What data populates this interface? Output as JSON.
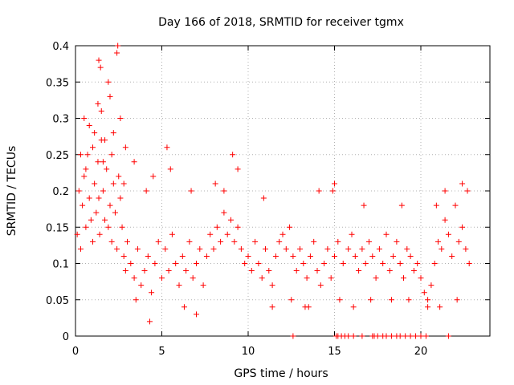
{
  "chart_data": {
    "type": "scatter",
    "title": "Day 166 of 2018, SRMTID for receiver tgmx",
    "xlabel": "GPS time / hours",
    "ylabel": "SRMTID / TECUs",
    "xlim": [
      0,
      24
    ],
    "ylim": [
      0,
      0.4
    ],
    "xticks": [
      0,
      5,
      10,
      15,
      20
    ],
    "xtick_labels": [
      "0",
      "5",
      "10",
      "15",
      "20"
    ],
    "yticks": [
      0,
      0.05,
      0.1,
      0.15,
      0.2,
      0.25,
      0.3,
      0.35,
      0.4
    ],
    "ytick_labels": [
      "0",
      "0.05",
      "0.1",
      "0.15",
      "0.2",
      "0.25",
      "0.3",
      "0.35",
      "0.4"
    ],
    "grid": true,
    "marker": "plus",
    "color": "#ff0000",
    "series": [
      {
        "name": "SRMTID",
        "x": [
          0.1,
          0.2,
          0.3,
          0.4,
          0.5,
          0.6,
          0.7,
          0.8,
          0.9,
          1.0,
          1.1,
          1.2,
          1.3,
          1.35,
          1.4,
          1.5,
          1.6,
          1.7,
          1.8,
          1.9,
          2.0,
          2.1,
          2.2,
          2.3,
          2.4,
          2.5,
          2.6,
          2.7,
          2.8,
          2.9,
          3.0,
          3.2,
          3.4,
          3.6,
          3.8,
          4.0,
          4.2,
          4.4,
          4.6,
          4.8,
          5.0,
          5.2,
          5.4,
          5.6,
          5.8,
          6.0,
          6.2,
          6.4,
          6.6,
          6.8,
          7.0,
          7.2,
          7.4,
          7.6,
          7.8,
          8.0,
          8.2,
          8.4,
          8.6,
          8.8,
          9.0,
          9.2,
          9.4,
          9.6,
          9.8,
          10.0,
          10.2,
          10.4,
          10.6,
          10.8,
          11.0,
          11.2,
          11.4,
          11.6,
          11.8,
          12.0,
          12.2,
          12.4,
          12.6,
          12.8,
          13.0,
          13.2,
          13.4,
          13.6,
          13.8,
          14.0,
          14.2,
          14.4,
          14.6,
          14.8,
          15.0,
          15.2,
          15.5,
          15.8,
          16.0,
          16.2,
          16.4,
          16.6,
          16.8,
          17.0,
          17.2,
          17.4,
          17.6,
          17.8,
          18.0,
          18.2,
          18.4,
          18.6,
          18.8,
          19.0,
          19.2,
          19.4,
          19.6,
          19.8,
          20.0,
          20.2,
          20.4,
          20.6,
          20.8,
          21.0,
          21.2,
          21.4,
          21.6,
          21.8,
          22.0,
          22.2,
          22.4,
          22.6,
          22.8,
          1.35,
          1.45,
          2.4,
          2.45,
          1.9,
          2.0,
          1.3,
          1.5,
          2.6,
          0.5,
          0.8,
          1.1,
          1.7,
          2.2,
          2.9,
          3.4,
          0.3,
          0.6,
          1.0,
          1.6,
          2.1,
          2.8,
          4.5,
          5.3,
          8.1,
          9.1,
          9.4,
          15.0,
          14.9,
          5.5,
          21.4,
          22.4,
          7.0,
          11.4,
          13.3,
          6.3,
          4.3,
          3.5,
          12.5,
          13.5,
          15.3,
          16.1,
          17.1,
          18.3,
          19.3,
          20.4,
          21.1,
          22.1,
          4.1,
          6.7,
          8.6,
          10.9,
          14.1,
          16.7,
          18.9,
          20.9,
          22.7,
          12.6,
          15.1,
          15.2,
          15.4,
          15.6,
          15.8,
          16.1,
          16.6,
          17.2,
          17.3,
          17.5,
          17.8,
          18.0,
          18.3,
          18.6,
          18.8,
          19.1,
          19.4,
          19.7,
          20.0,
          20.3,
          21.6
        ],
        "y": [
          0.14,
          0.2,
          0.12,
          0.18,
          0.22,
          0.15,
          0.25,
          0.19,
          0.16,
          0.13,
          0.21,
          0.17,
          0.24,
          0.19,
          0.14,
          0.27,
          0.2,
          0.16,
          0.23,
          0.15,
          0.18,
          0.13,
          0.21,
          0.17,
          0.12,
          0.22,
          0.19,
          0.15,
          0.11,
          0.09,
          0.13,
          0.1,
          0.08,
          0.12,
          0.07,
          0.09,
          0.11,
          0.06,
          0.1,
          0.13,
          0.08,
          0.12,
          0.09,
          0.14,
          0.1,
          0.07,
          0.11,
          0.09,
          0.13,
          0.08,
          0.1,
          0.12,
          0.07,
          0.11,
          0.14,
          0.12,
          0.15,
          0.13,
          0.17,
          0.14,
          0.16,
          0.13,
          0.15,
          0.12,
          0.1,
          0.11,
          0.09,
          0.13,
          0.1,
          0.08,
          0.12,
          0.09,
          0.07,
          0.11,
          0.13,
          0.14,
          0.12,
          0.15,
          0.11,
          0.09,
          0.12,
          0.1,
          0.08,
          0.11,
          0.13,
          0.09,
          0.07,
          0.1,
          0.12,
          0.08,
          0.11,
          0.13,
          0.1,
          0.12,
          0.14,
          0.11,
          0.09,
          0.12,
          0.1,
          0.13,
          0.11,
          0.08,
          0.12,
          0.1,
          0.14,
          0.09,
          0.11,
          0.13,
          0.1,
          0.08,
          0.12,
          0.11,
          0.09,
          0.1,
          0.08,
          0.06,
          0.05,
          0.07,
          0.1,
          0.13,
          0.12,
          0.16,
          0.14,
          0.11,
          0.18,
          0.13,
          0.15,
          0.12,
          0.1,
          0.38,
          0.37,
          0.39,
          0.4,
          0.35,
          0.33,
          0.32,
          0.31,
          0.3,
          0.3,
          0.29,
          0.28,
          0.27,
          0.28,
          0.26,
          0.24,
          0.25,
          0.23,
          0.26,
          0.24,
          0.25,
          0.21,
          0.22,
          0.26,
          0.21,
          0.25,
          0.23,
          0.21,
          0.2,
          0.23,
          0.2,
          0.21,
          0.03,
          0.04,
          0.04,
          0.04,
          0.02,
          0.05,
          0.05,
          0.04,
          0.05,
          0.04,
          0.05,
          0.05,
          0.05,
          0.04,
          0.04,
          0.05,
          0.2,
          0.2,
          0.2,
          0.19,
          0.2,
          0.18,
          0.18,
          0.18,
          0.2,
          0.0,
          0.0,
          0.0,
          0.0,
          0.0,
          0.0,
          0.0,
          0.0,
          0.0,
          0.0,
          0.0,
          0.0,
          0.0,
          0.0,
          0.0,
          0.0,
          0.0,
          0.0,
          0.0,
          0.0,
          0.0,
          0.0
        ]
      }
    ]
  }
}
